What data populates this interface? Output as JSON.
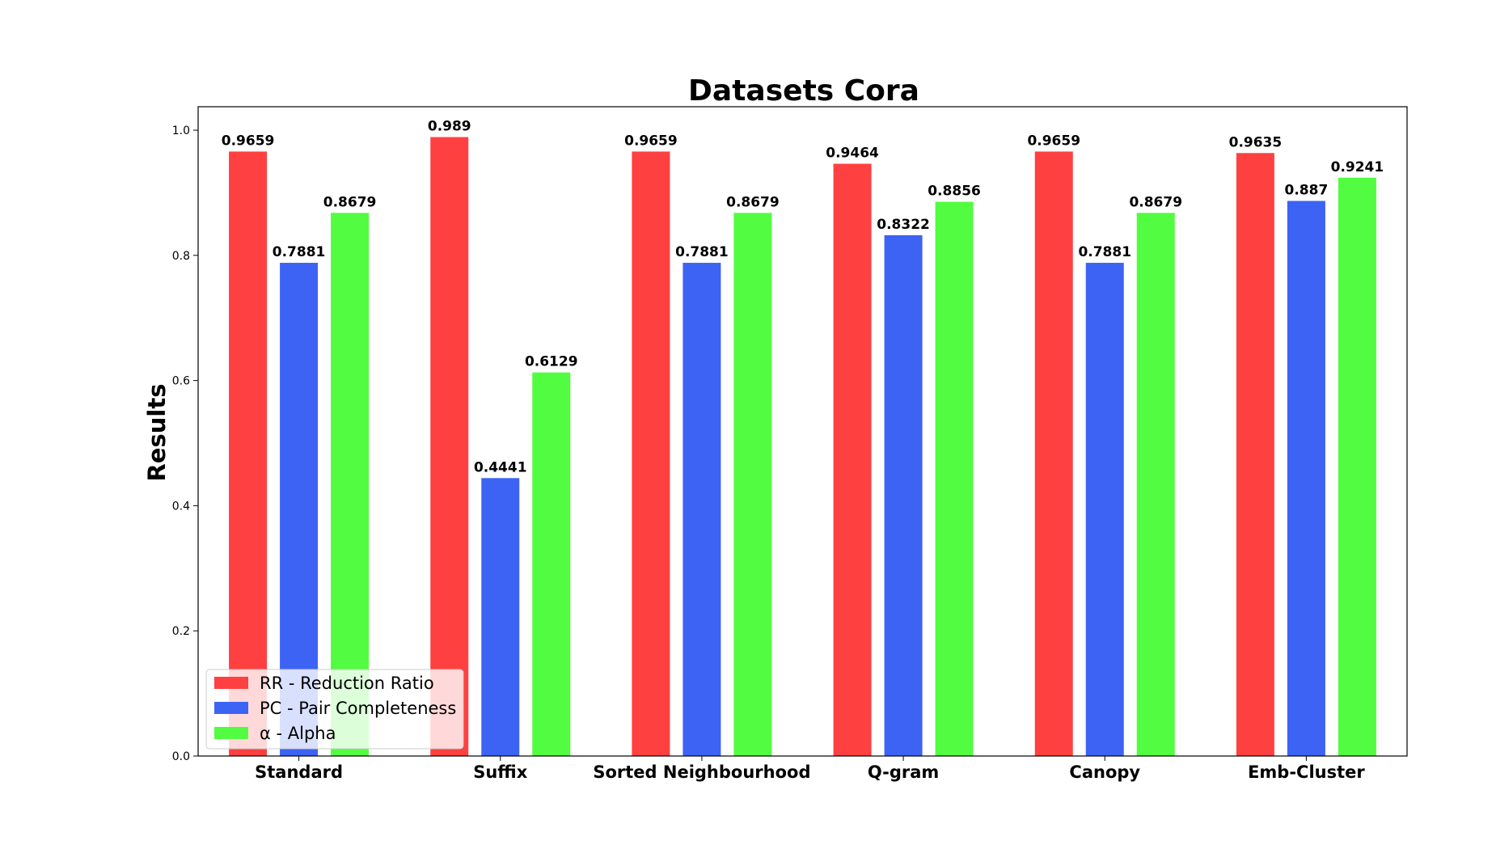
{
  "chart_data": {
    "type": "bar",
    "title": "Datasets Cora",
    "xlabel": "",
    "ylabel": "Results",
    "ylim": [
      0,
      1.0375
    ],
    "yticks": [
      "0.0",
      "0.2",
      "0.4",
      "0.6",
      "0.8",
      "1.0"
    ],
    "categories": [
      "Standard",
      "Suffix",
      "Sorted Neighbourhood",
      "Q-gram",
      "Canopy",
      "Emb-Cluster"
    ],
    "series": [
      {
        "name": "RR - Reduction Ratio",
        "color": "#ff4040",
        "values": [
          0.9659,
          0.989,
          0.9659,
          0.9464,
          0.9659,
          0.9635
        ],
        "labels": [
          "0.9659",
          "0.989",
          "0.9659",
          "0.9464",
          "0.9659",
          "0.9635"
        ]
      },
      {
        "name": "PC - Pair Completeness",
        "color": "#3d63f5",
        "values": [
          0.7881,
          0.4441,
          0.7881,
          0.8322,
          0.7881,
          0.887
        ],
        "labels": [
          "0.7881",
          "0.4441",
          "0.7881",
          "0.8322",
          "0.7881",
          "0.887"
        ]
      },
      {
        "name": "α - Alpha",
        "color": "#52fc40",
        "values": [
          0.8679,
          0.6129,
          0.8679,
          0.8856,
          0.8679,
          0.9241
        ],
        "labels": [
          "0.8679",
          "0.6129",
          "0.8679",
          "0.8856",
          "0.8679",
          "0.9241"
        ]
      }
    ],
    "legend": {
      "position": "lower-left"
    },
    "grid": false
  }
}
